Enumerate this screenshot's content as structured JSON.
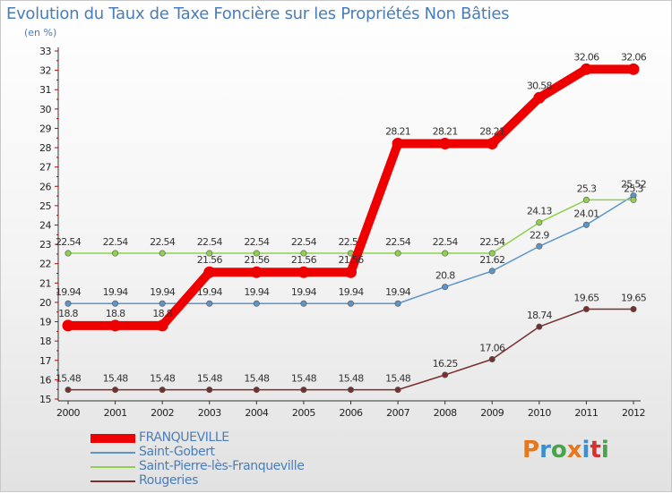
{
  "title": "Evolution du Taux de Taxe Foncière sur les Propriétés Non Bâties",
  "unit_label": "(en %)",
  "logo": {
    "text": "Proxiti",
    "colors": [
      "#e8761b",
      "#3b8fd1",
      "#4aa24a",
      "#e8761b",
      "#3b8fd1",
      "#d9302c",
      "#4aa24a"
    ]
  },
  "chart_data": {
    "type": "line",
    "title": "Evolution du Taux de Taxe Foncière sur les Propriétés Non Bâties",
    "ylabel": "(en %)",
    "xlabel": "",
    "ylim": [
      15,
      33
    ],
    "yticks": [
      "15",
      "16",
      "17",
      "18",
      "19",
      "20",
      "21",
      "22",
      "23",
      "24",
      "25",
      "26",
      "27",
      "28",
      "29",
      "30",
      "31",
      "32",
      "33"
    ],
    "categories": [
      "2000",
      "2001",
      "2002",
      "2003",
      "2004",
      "2005",
      "2006",
      "2007",
      "2008",
      "2009",
      "2010",
      "2011",
      "2012"
    ],
    "series": [
      {
        "name": "Rougeries",
        "color": "#7a2f2f",
        "values": [
          15.48,
          15.48,
          15.48,
          15.48,
          15.48,
          15.48,
          15.48,
          15.48,
          16.25,
          17.06,
          18.74,
          19.65,
          19.65
        ],
        "labels": [
          "15.48",
          "15.48",
          "15.48",
          "15.48",
          "15.48",
          "15.48",
          "15.48",
          "15.48",
          "16.25",
          "17.06",
          "18.74",
          "19.65",
          "19.65"
        ]
      },
      {
        "name": "Saint-Gobert",
        "color": "#5b95c9",
        "values": [
          19.94,
          19.94,
          19.94,
          19.94,
          19.94,
          19.94,
          19.94,
          19.94,
          20.8,
          21.62,
          22.9,
          24.01,
          25.52
        ],
        "labels": [
          "19.94",
          "19.94",
          "19.94",
          "19.94",
          "19.94",
          "19.94",
          "19.94",
          "19.94",
          "20.8",
          "21.62",
          "22.9",
          "24.01",
          "25.52"
        ]
      },
      {
        "name": "Saint-Pierre-lès-Franqueville",
        "color": "#8fd14f",
        "values": [
          22.54,
          22.54,
          22.54,
          22.54,
          22.54,
          22.54,
          22.54,
          22.54,
          22.54,
          22.54,
          24.13,
          25.3,
          25.3
        ],
        "labels": [
          "22.54",
          "22.54",
          "22.54",
          "22.54",
          "22.54",
          "22.54",
          "22.54",
          "22.54",
          "22.54",
          "22.54",
          "24.13",
          "25.3",
          "25.3"
        ]
      },
      {
        "name": "FRANQUEVILLE",
        "color": "#ee0000",
        "values": [
          18.8,
          18.8,
          18.8,
          21.56,
          21.56,
          21.56,
          21.56,
          28.21,
          28.21,
          28.21,
          30.58,
          32.06,
          32.06
        ],
        "labels": [
          "18.8",
          "18.8",
          "18.8",
          "21.56",
          "21.56",
          "21.56",
          "21.56",
          "28.21",
          "28.21",
          "28.21",
          "30.58",
          "32.06",
          "32.06"
        ]
      }
    ],
    "legend_order": [
      "FRANQUEVILLE",
      "Saint-Gobert",
      "Saint-Pierre-lès-Franqueville",
      "Rougeries"
    ],
    "grid": false,
    "legend": "bottom-left"
  }
}
